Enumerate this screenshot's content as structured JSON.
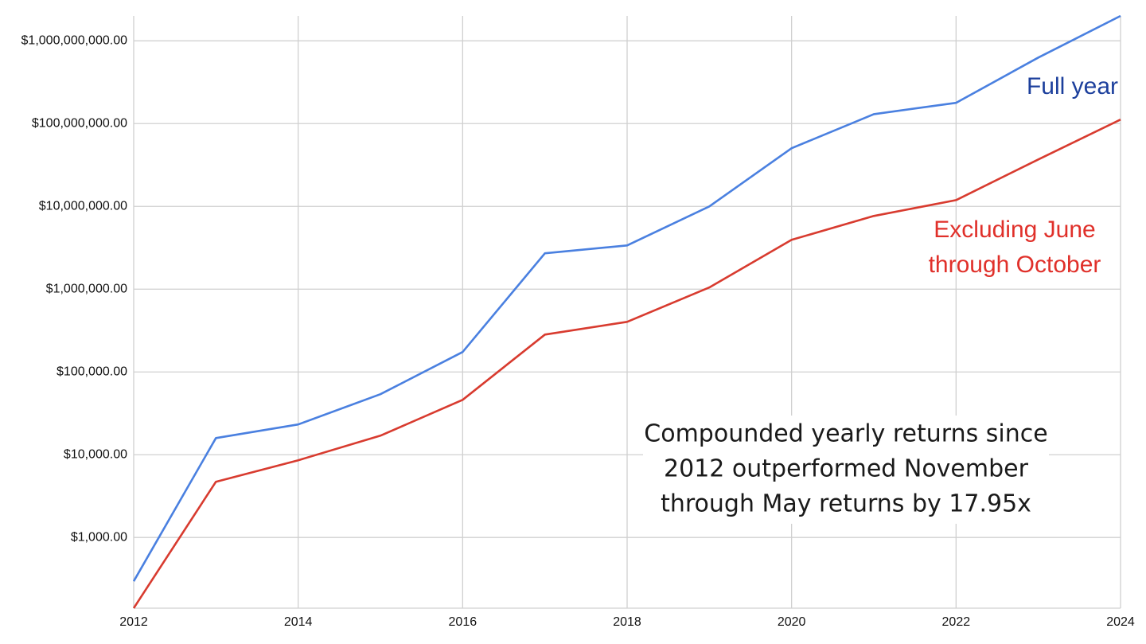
{
  "chart_data": {
    "type": "line",
    "x": [
      2012,
      2013,
      2014,
      2015,
      2016,
      2017,
      2018,
      2019,
      2020,
      2021,
      2022,
      2023,
      2024
    ],
    "series": [
      {
        "color": "#4a80e0",
        "values": [
          296,
          15900,
          23200,
          53800,
          174000,
          2710000,
          3380000,
          10000000,
          50400000,
          130000000,
          178000000,
          628000000,
          2000000000
        ]
      },
      {
        "color": "#d83b2f",
        "values": [
          140,
          4710,
          8570,
          17000,
          46000,
          283000,
          403000,
          1050000,
          3940000,
          7670000,
          11900000,
          36900000,
          112000000
        ]
      }
    ],
    "xlim": [
      2012,
      2024
    ],
    "xticks": [
      2012,
      2014,
      2016,
      2018,
      2020,
      2022,
      2024
    ],
    "ylim": [
      140,
      2000000000
    ],
    "yticks": [
      {
        "value": 1000,
        "label": "$1,000.00"
      },
      {
        "value": 10000,
        "label": "$10,000.00"
      },
      {
        "value": 100000,
        "label": "$100,000.00"
      },
      {
        "value": 1000000,
        "label": "$1,000,000.00"
      },
      {
        "value": 10000000,
        "label": "$10,000,000.00"
      },
      {
        "value": 100000000,
        "label": "$100,000,000.00"
      },
      {
        "value": 1000000000,
        "label": "$1,000,000,000.00"
      }
    ],
    "log_scale": true,
    "grid": true,
    "annotations": [
      {
        "lines": [
          "Full year"
        ],
        "color": "#1c3f9c"
      },
      {
        "lines": [
          "Excluding June",
          "through October"
        ],
        "color": "#e0302a"
      },
      {
        "lines": [
          "Compounded yearly returns since",
          "2012 outperformed November",
          "through May returns by 17.95x"
        ],
        "color": "#1a1a1a"
      }
    ]
  }
}
